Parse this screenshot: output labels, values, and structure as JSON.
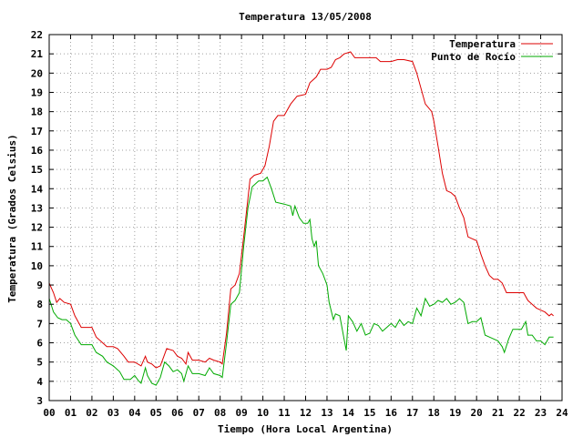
{
  "chart_data": {
    "type": "line",
    "title": "Temperatura 13/05/2008",
    "xlabel": "Tiempo (Hora Local Argentina)",
    "ylabel": "Temperatura (Grados Celsius)",
    "xlim": [
      0,
      24
    ],
    "ylim": [
      3,
      22
    ],
    "grid": true,
    "legend_position": "top-right",
    "x_ticks": [
      0,
      1,
      2,
      3,
      4,
      5,
      6,
      7,
      8,
      9,
      10,
      11,
      12,
      13,
      14,
      15,
      16,
      17,
      18,
      19,
      20,
      21,
      22,
      23,
      24
    ],
    "x_tick_labels": [
      "00",
      "01",
      "02",
      "03",
      "04",
      "05",
      "06",
      "07",
      "08",
      "09",
      "10",
      "11",
      "12",
      "13",
      "14",
      "15",
      "16",
      "17",
      "18",
      "19",
      "20",
      "21",
      "22",
      "23",
      "24"
    ],
    "y_ticks": [
      3,
      4,
      5,
      6,
      7,
      8,
      9,
      10,
      11,
      12,
      13,
      14,
      15,
      16,
      17,
      18,
      19,
      20,
      21,
      22
    ],
    "y_tick_labels": [
      "3",
      "4",
      "5",
      "6",
      "7",
      "8",
      "9",
      "10",
      "11",
      "12",
      "13",
      "14",
      "15",
      "16",
      "17",
      "18",
      "19",
      "20",
      "21",
      "22"
    ],
    "series": [
      {
        "name": "Temperatura",
        "color": "#dd0000",
        "points": [
          [
            0,
            9.1
          ],
          [
            0.2,
            8.6
          ],
          [
            0.35,
            8.1
          ],
          [
            0.5,
            8.3
          ],
          [
            0.7,
            8.1
          ],
          [
            1.0,
            8.0
          ],
          [
            1.2,
            7.4
          ],
          [
            1.5,
            6.8
          ],
          [
            2.0,
            6.8
          ],
          [
            2.2,
            6.3
          ],
          [
            2.5,
            6.0
          ],
          [
            2.7,
            5.8
          ],
          [
            3.0,
            5.8
          ],
          [
            3.2,
            5.7
          ],
          [
            3.5,
            5.3
          ],
          [
            3.7,
            5.0
          ],
          [
            4.0,
            5.0
          ],
          [
            4.3,
            4.8
          ],
          [
            4.5,
            5.3
          ],
          [
            4.6,
            5.0
          ],
          [
            4.8,
            4.9
          ],
          [
            5.0,
            4.7
          ],
          [
            5.2,
            4.8
          ],
          [
            5.4,
            5.4
          ],
          [
            5.5,
            5.7
          ],
          [
            5.8,
            5.6
          ],
          [
            6.0,
            5.3
          ],
          [
            6.2,
            5.2
          ],
          [
            6.4,
            4.9
          ],
          [
            6.5,
            5.5
          ],
          [
            6.7,
            5.1
          ],
          [
            7.0,
            5.1
          ],
          [
            7.3,
            5.0
          ],
          [
            7.5,
            5.2
          ],
          [
            7.7,
            5.1
          ],
          [
            8.0,
            5.0
          ],
          [
            8.1,
            4.9
          ],
          [
            8.3,
            6.5
          ],
          [
            8.5,
            8.8
          ],
          [
            8.7,
            9.0
          ],
          [
            8.9,
            9.6
          ],
          [
            9.1,
            11.5
          ],
          [
            9.3,
            13.5
          ],
          [
            9.4,
            14.5
          ],
          [
            9.6,
            14.7
          ],
          [
            9.9,
            14.8
          ],
          [
            10.1,
            15.2
          ],
          [
            10.3,
            16.2
          ],
          [
            10.5,
            17.5
          ],
          [
            10.7,
            17.8
          ],
          [
            11.0,
            17.8
          ],
          [
            11.3,
            18.4
          ],
          [
            11.6,
            18.8
          ],
          [
            12.0,
            18.9
          ],
          [
            12.2,
            19.5
          ],
          [
            12.5,
            19.8
          ],
          [
            12.7,
            20.2
          ],
          [
            13.0,
            20.2
          ],
          [
            13.2,
            20.3
          ],
          [
            13.4,
            20.7
          ],
          [
            13.6,
            20.8
          ],
          [
            13.8,
            21.0
          ],
          [
            14.1,
            21.1
          ],
          [
            14.3,
            20.8
          ],
          [
            14.5,
            20.8
          ],
          [
            15.0,
            20.8
          ],
          [
            15.3,
            20.8
          ],
          [
            15.5,
            20.6
          ],
          [
            16.0,
            20.6
          ],
          [
            16.3,
            20.7
          ],
          [
            16.6,
            20.7
          ],
          [
            17.0,
            20.6
          ],
          [
            17.2,
            20.0
          ],
          [
            17.4,
            19.2
          ],
          [
            17.6,
            18.4
          ],
          [
            17.9,
            18.0
          ],
          [
            18.0,
            17.5
          ],
          [
            18.2,
            16.2
          ],
          [
            18.4,
            14.8
          ],
          [
            18.6,
            13.9
          ],
          [
            18.8,
            13.8
          ],
          [
            19.0,
            13.6
          ],
          [
            19.2,
            13.0
          ],
          [
            19.4,
            12.5
          ],
          [
            19.6,
            11.5
          ],
          [
            19.8,
            11.4
          ],
          [
            20.0,
            11.3
          ],
          [
            20.2,
            10.6
          ],
          [
            20.4,
            10.0
          ],
          [
            20.6,
            9.5
          ],
          [
            20.8,
            9.3
          ],
          [
            21.0,
            9.3
          ],
          [
            21.2,
            9.1
          ],
          [
            21.4,
            8.6
          ],
          [
            21.6,
            8.6
          ],
          [
            21.8,
            8.6
          ],
          [
            22.0,
            8.6
          ],
          [
            22.2,
            8.6
          ],
          [
            22.4,
            8.2
          ],
          [
            22.6,
            8.0
          ],
          [
            22.8,
            7.8
          ],
          [
            23.0,
            7.7
          ],
          [
            23.2,
            7.6
          ],
          [
            23.4,
            7.4
          ],
          [
            23.5,
            7.5
          ],
          [
            23.6,
            7.4
          ]
        ]
      },
      {
        "name": "Punto de Rocío",
        "color": "#00aa00",
        "points": [
          [
            0,
            8.3
          ],
          [
            0.2,
            7.6
          ],
          [
            0.4,
            7.3
          ],
          [
            0.6,
            7.2
          ],
          [
            0.8,
            7.2
          ],
          [
            1.0,
            7.0
          ],
          [
            1.2,
            6.4
          ],
          [
            1.5,
            5.9
          ],
          [
            2.0,
            5.9
          ],
          [
            2.2,
            5.5
          ],
          [
            2.5,
            5.3
          ],
          [
            2.7,
            5.0
          ],
          [
            3.0,
            4.8
          ],
          [
            3.3,
            4.5
          ],
          [
            3.5,
            4.1
          ],
          [
            3.8,
            4.1
          ],
          [
            4.0,
            4.3
          ],
          [
            4.2,
            4.0
          ],
          [
            4.3,
            3.9
          ],
          [
            4.5,
            4.7
          ],
          [
            4.6,
            4.3
          ],
          [
            4.8,
            3.9
          ],
          [
            5.0,
            3.8
          ],
          [
            5.2,
            4.2
          ],
          [
            5.4,
            5.0
          ],
          [
            5.6,
            4.8
          ],
          [
            5.8,
            4.5
          ],
          [
            6.0,
            4.6
          ],
          [
            6.2,
            4.4
          ],
          [
            6.3,
            4.0
          ],
          [
            6.5,
            4.8
          ],
          [
            6.7,
            4.4
          ],
          [
            7.0,
            4.4
          ],
          [
            7.3,
            4.3
          ],
          [
            7.5,
            4.7
          ],
          [
            7.7,
            4.4
          ],
          [
            8.0,
            4.3
          ],
          [
            8.1,
            4.2
          ],
          [
            8.3,
            6.0
          ],
          [
            8.5,
            8.0
          ],
          [
            8.7,
            8.2
          ],
          [
            8.9,
            8.6
          ],
          [
            9.1,
            11.0
          ],
          [
            9.3,
            13.0
          ],
          [
            9.5,
            14.1
          ],
          [
            9.8,
            14.4
          ],
          [
            10.0,
            14.4
          ],
          [
            10.2,
            14.6
          ],
          [
            10.4,
            14.0
          ],
          [
            10.6,
            13.3
          ],
          [
            11.0,
            13.2
          ],
          [
            11.3,
            13.1
          ],
          [
            11.4,
            12.6
          ],
          [
            11.5,
            13.1
          ],
          [
            11.7,
            12.5
          ],
          [
            11.9,
            12.2
          ],
          [
            12.1,
            12.2
          ],
          [
            12.2,
            12.4
          ],
          [
            12.3,
            11.4
          ],
          [
            12.4,
            11.0
          ],
          [
            12.5,
            11.3
          ],
          [
            12.6,
            10.0
          ],
          [
            12.8,
            9.6
          ],
          [
            13.0,
            9.0
          ],
          [
            13.1,
            8.1
          ],
          [
            13.3,
            7.2
          ],
          [
            13.4,
            7.5
          ],
          [
            13.6,
            7.4
          ],
          [
            13.8,
            6.2
          ],
          [
            13.9,
            5.6
          ],
          [
            14.0,
            7.4
          ],
          [
            14.2,
            7.1
          ],
          [
            14.4,
            6.6
          ],
          [
            14.6,
            7.0
          ],
          [
            14.8,
            6.4
          ],
          [
            15.0,
            6.5
          ],
          [
            15.2,
            7.0
          ],
          [
            15.4,
            6.9
          ],
          [
            15.6,
            6.6
          ],
          [
            15.8,
            6.8
          ],
          [
            16.0,
            7.0
          ],
          [
            16.2,
            6.8
          ],
          [
            16.4,
            7.2
          ],
          [
            16.6,
            6.9
          ],
          [
            16.8,
            7.1
          ],
          [
            17.0,
            7.0
          ],
          [
            17.2,
            7.8
          ],
          [
            17.4,
            7.4
          ],
          [
            17.6,
            8.3
          ],
          [
            17.8,
            7.9
          ],
          [
            18.0,
            8.0
          ],
          [
            18.2,
            8.2
          ],
          [
            18.4,
            8.1
          ],
          [
            18.6,
            8.3
          ],
          [
            18.8,
            8.0
          ],
          [
            19.0,
            8.1
          ],
          [
            19.2,
            8.3
          ],
          [
            19.4,
            8.1
          ],
          [
            19.6,
            7.0
          ],
          [
            19.8,
            7.1
          ],
          [
            20.0,
            7.1
          ],
          [
            20.2,
            7.3
          ],
          [
            20.4,
            6.4
          ],
          [
            20.6,
            6.3
          ],
          [
            20.8,
            6.2
          ],
          [
            21.0,
            6.1
          ],
          [
            21.2,
            5.8
          ],
          [
            21.3,
            5.5
          ],
          [
            21.5,
            6.2
          ],
          [
            21.7,
            6.7
          ],
          [
            21.9,
            6.7
          ],
          [
            22.1,
            6.7
          ],
          [
            22.3,
            7.1
          ],
          [
            22.4,
            6.4
          ],
          [
            22.6,
            6.4
          ],
          [
            22.8,
            6.1
          ],
          [
            23.0,
            6.1
          ],
          [
            23.2,
            5.9
          ],
          [
            23.4,
            6.3
          ],
          [
            23.6,
            6.3
          ]
        ]
      }
    ]
  }
}
